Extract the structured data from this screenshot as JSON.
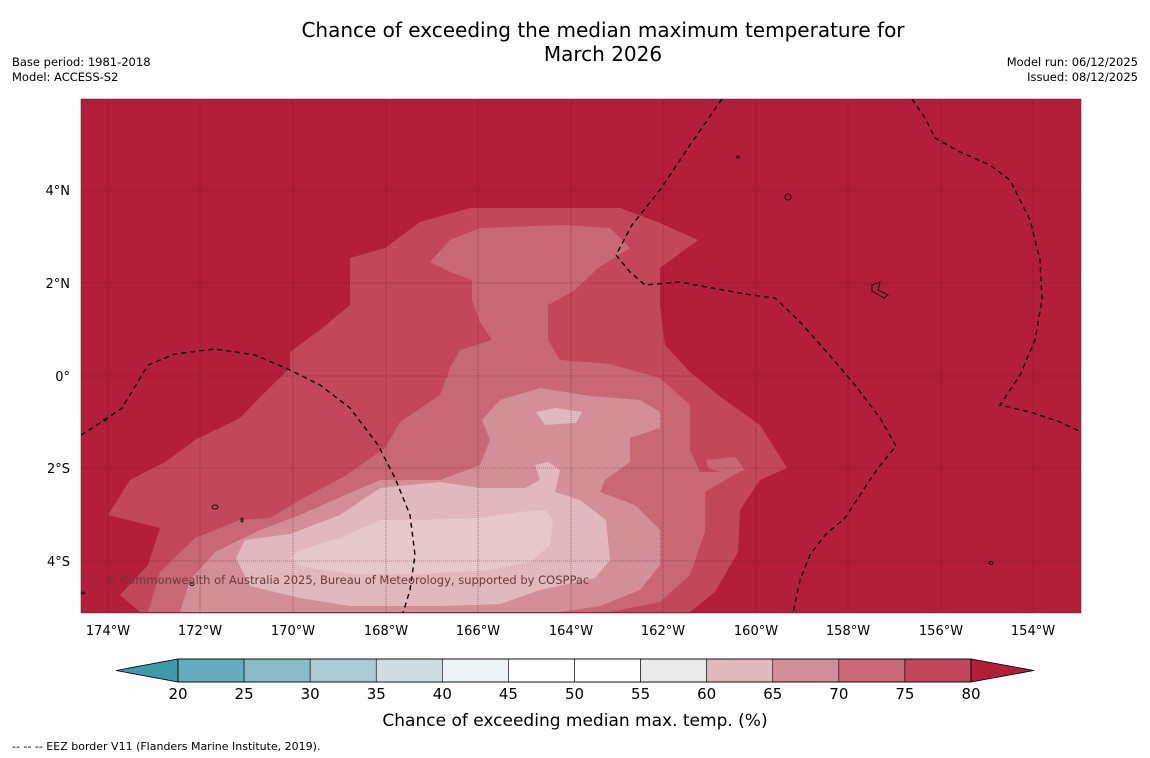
{
  "title_line1": "Chance of exceeding the median maximum temperature for",
  "title_line2": "March 2026",
  "base_period": "Base period: 1981-2018",
  "model": "Model: ACCESS-S2",
  "model_run": "Model run: 06/12/2025",
  "issued": "Issued: 08/12/2025",
  "copyright": "© Commonwealth of Australia 2025, Bureau of Meteorology, supported by COSPPac",
  "map": {
    "lon_labels": [
      "174°W",
      "172°W",
      "170°W",
      "168°W",
      "166°W",
      "164°W",
      "162°W",
      "160°W",
      "158°W",
      "156°W",
      "154°W"
    ],
    "lat_labels": [
      "4°N",
      "2°N",
      "0°",
      "2°S",
      "4°S"
    ],
    "background_color": "#b31e3a"
  },
  "colorbar": {
    "title": "Chance of exceeding median max. temp. (%)",
    "ticks": [
      "20",
      "25",
      "30",
      "35",
      "40",
      "45",
      "50",
      "55",
      "60",
      "65",
      "70",
      "75",
      "80"
    ],
    "colors": [
      "#3d9aab",
      "#64acbe",
      "#87bcc8",
      "#abcbd2",
      "#cddde0",
      "#eef4f5",
      "#ffffff",
      "#ffffff",
      "#eaeaea",
      "#e1b8bd",
      "#d38f98",
      "#c86874",
      "#c2475a",
      "#b31e3a"
    ]
  },
  "footnote": "--  --  -- EEZ border V11 (Flanders Marine Institute, 2019)."
}
